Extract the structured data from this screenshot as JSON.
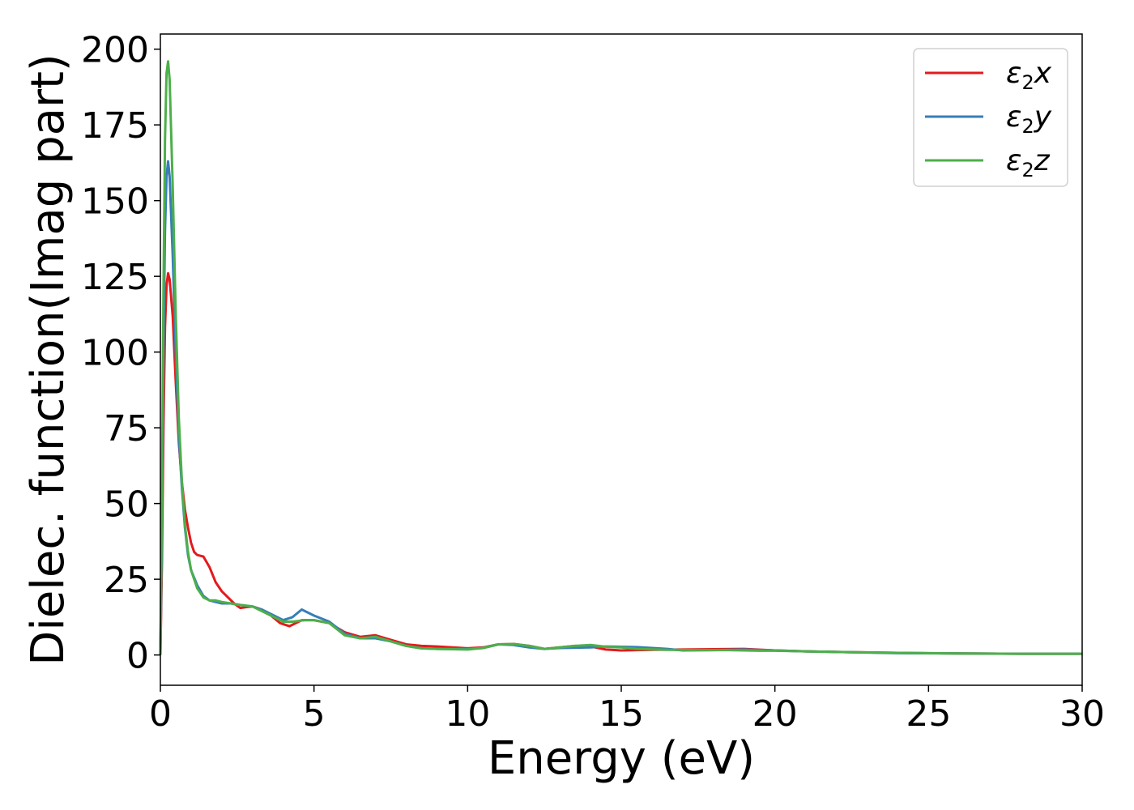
{
  "chart_data": {
    "type": "line",
    "xlabel": "Energy (eV)",
    "ylabel": "Dielec. function(Imag part)",
    "xlim": [
      0,
      30
    ],
    "ylim": [
      -10,
      205
    ],
    "xticks": [
      0,
      5,
      10,
      15,
      20,
      25,
      30
    ],
    "yticks": [
      0,
      25,
      50,
      75,
      100,
      125,
      150,
      175,
      200
    ],
    "grid": false,
    "legend_position": "top-right",
    "legend": [
      {
        "main": "ε",
        "sub": "2",
        "var": "x"
      },
      {
        "main": "ε",
        "sub": "2",
        "var": "y"
      },
      {
        "main": "ε",
        "sub": "2",
        "var": "z"
      }
    ],
    "series": [
      {
        "color": "#e41a1c",
        "points": [
          [
            0,
            0
          ],
          [
            0.05,
            30
          ],
          [
            0.1,
            75
          ],
          [
            0.15,
            108
          ],
          [
            0.2,
            122
          ],
          [
            0.25,
            126
          ],
          [
            0.3,
            124
          ],
          [
            0.4,
            112
          ],
          [
            0.5,
            90
          ],
          [
            0.6,
            70
          ],
          [
            0.7,
            57
          ],
          [
            0.8,
            48
          ],
          [
            0.9,
            42
          ],
          [
            1.0,
            37
          ],
          [
            1.1,
            34
          ],
          [
            1.2,
            33
          ],
          [
            1.4,
            32.5
          ],
          [
            1.6,
            29
          ],
          [
            1.8,
            24
          ],
          [
            2.0,
            21
          ],
          [
            2.2,
            19
          ],
          [
            2.4,
            17
          ],
          [
            2.6,
            15.5
          ],
          [
            2.8,
            15.8
          ],
          [
            3.0,
            16
          ],
          [
            3.3,
            15
          ],
          [
            3.6,
            13
          ],
          [
            3.9,
            10.5
          ],
          [
            4.2,
            9.5
          ],
          [
            4.6,
            11.5
          ],
          [
            5.0,
            11.5
          ],
          [
            5.5,
            10.5
          ],
          [
            6.0,
            7.5
          ],
          [
            6.5,
            6
          ],
          [
            7.0,
            6.5
          ],
          [
            7.5,
            5
          ],
          [
            8.0,
            3.5
          ],
          [
            8.5,
            3
          ],
          [
            9.0,
            2.8
          ],
          [
            10.0,
            2.2
          ],
          [
            10.5,
            2.5
          ],
          [
            11.0,
            3.5
          ],
          [
            11.5,
            3.6
          ],
          [
            12.0,
            3
          ],
          [
            12.5,
            2
          ],
          [
            13.0,
            2.5
          ],
          [
            13.5,
            3
          ],
          [
            14.0,
            2.8
          ],
          [
            14.5,
            1.8
          ],
          [
            15.0,
            1.5
          ],
          [
            16.0,
            1.7
          ],
          [
            17.0,
            1.8
          ],
          [
            18.0,
            1.9
          ],
          [
            19.0,
            2
          ],
          [
            20.0,
            1.5
          ],
          [
            21.0,
            1.2
          ],
          [
            22.0,
            1
          ],
          [
            24.0,
            0.7
          ],
          [
            26.0,
            0.5
          ],
          [
            28.0,
            0.4
          ],
          [
            30.0,
            0.4
          ]
        ]
      },
      {
        "color": "#377eb8",
        "points": [
          [
            0,
            0
          ],
          [
            0.05,
            40
          ],
          [
            0.1,
            100
          ],
          [
            0.15,
            140
          ],
          [
            0.2,
            158
          ],
          [
            0.25,
            163
          ],
          [
            0.3,
            158
          ],
          [
            0.4,
            132
          ],
          [
            0.5,
            100
          ],
          [
            0.6,
            72
          ],
          [
            0.7,
            55
          ],
          [
            0.8,
            42
          ],
          [
            0.9,
            33
          ],
          [
            1.0,
            28
          ],
          [
            1.2,
            23
          ],
          [
            1.4,
            19.5
          ],
          [
            1.6,
            18
          ],
          [
            1.8,
            17.5
          ],
          [
            2.0,
            17
          ],
          [
            2.3,
            17
          ],
          [
            2.6,
            16.5
          ],
          [
            3.0,
            16
          ],
          [
            3.3,
            15
          ],
          [
            3.6,
            13.5
          ],
          [
            4.0,
            11.5
          ],
          [
            4.3,
            12.5
          ],
          [
            4.6,
            15
          ],
          [
            5.0,
            13
          ],
          [
            5.5,
            11
          ],
          [
            6.0,
            7
          ],
          [
            6.5,
            5.5
          ],
          [
            7.0,
            5.5
          ],
          [
            7.5,
            4.5
          ],
          [
            8.0,
            3
          ],
          [
            8.5,
            2.2
          ],
          [
            9.0,
            2
          ],
          [
            10.0,
            2
          ],
          [
            10.5,
            2.3
          ],
          [
            11.0,
            3.5
          ],
          [
            11.5,
            3.3
          ],
          [
            12.0,
            2.5
          ],
          [
            12.5,
            2
          ],
          [
            13.0,
            2.3
          ],
          [
            14.0,
            2.5
          ],
          [
            14.5,
            2.8
          ],
          [
            15.5,
            2.6
          ],
          [
            16.5,
            2
          ],
          [
            17.0,
            1.5
          ],
          [
            18.0,
            1.6
          ],
          [
            19.0,
            1.8
          ],
          [
            20.0,
            1.5
          ],
          [
            21.0,
            1.2
          ],
          [
            22.0,
            1
          ],
          [
            24.0,
            0.6
          ],
          [
            26.0,
            0.5
          ],
          [
            28.0,
            0.4
          ],
          [
            30.0,
            0.4
          ]
        ]
      },
      {
        "color": "#4daf4a",
        "points": [
          [
            0,
            0
          ],
          [
            0.05,
            50
          ],
          [
            0.1,
            120
          ],
          [
            0.15,
            170
          ],
          [
            0.2,
            192
          ],
          [
            0.25,
            196
          ],
          [
            0.3,
            190
          ],
          [
            0.4,
            155
          ],
          [
            0.5,
            112
          ],
          [
            0.6,
            78
          ],
          [
            0.7,
            57
          ],
          [
            0.8,
            43
          ],
          [
            0.9,
            34
          ],
          [
            1.0,
            28
          ],
          [
            1.2,
            22
          ],
          [
            1.4,
            19
          ],
          [
            1.6,
            18
          ],
          [
            1.8,
            18
          ],
          [
            2.0,
            17.5
          ],
          [
            2.3,
            17
          ],
          [
            2.6,
            16.5
          ],
          [
            3.0,
            16
          ],
          [
            3.3,
            14.5
          ],
          [
            3.6,
            13
          ],
          [
            4.0,
            11
          ],
          [
            4.3,
            11
          ],
          [
            4.7,
            11.5
          ],
          [
            5.0,
            11.5
          ],
          [
            5.5,
            10.5
          ],
          [
            6.0,
            6.5
          ],
          [
            6.5,
            5.5
          ],
          [
            7.0,
            6
          ],
          [
            7.5,
            4.5
          ],
          [
            8.0,
            3
          ],
          [
            8.5,
            2.2
          ],
          [
            9.0,
            2
          ],
          [
            10.0,
            1.8
          ],
          [
            10.5,
            2.3
          ],
          [
            11.0,
            3.5
          ],
          [
            11.5,
            3.6
          ],
          [
            12.0,
            3
          ],
          [
            12.5,
            2
          ],
          [
            13.0,
            2.5
          ],
          [
            13.5,
            3
          ],
          [
            14.0,
            3.3
          ],
          [
            14.5,
            2.7
          ],
          [
            15.0,
            2.5
          ],
          [
            15.5,
            2
          ],
          [
            16.5,
            1.7
          ],
          [
            17.5,
            1.6
          ],
          [
            18.5,
            1.6
          ],
          [
            19.5,
            1.4
          ],
          [
            20.0,
            1.4
          ],
          [
            21.0,
            1.2
          ],
          [
            22.0,
            1
          ],
          [
            24.0,
            0.7
          ],
          [
            26.0,
            0.5
          ],
          [
            28.0,
            0.4
          ],
          [
            30.0,
            0.4
          ]
        ]
      }
    ]
  }
}
